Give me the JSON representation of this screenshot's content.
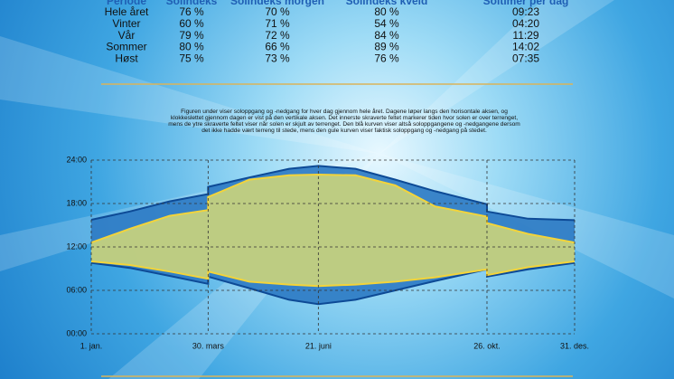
{
  "table": {
    "header": [
      "Periode",
      "Solindeks",
      "Solindeks morgen",
      "Solindeks kveld",
      "Soltimer per dag"
    ],
    "rows": [
      [
        "Hele året",
        "76 %",
        "70 %",
        "80 %",
        "09:23"
      ],
      [
        "Vinter",
        "60 %",
        "71 %",
        "54 %",
        "04:20"
      ],
      [
        "Vår",
        "79 %",
        "72 %",
        "84 %",
        "11:29"
      ],
      [
        "Sommer",
        "80 %",
        "66 %",
        "89 %",
        "14:02"
      ],
      [
        "Høst",
        "75 %",
        "73 %",
        "76 %",
        "07:35"
      ]
    ]
  },
  "description": [
    "Figuren under viser soloppgang og -nedgang for hver dag gjennom hele året. Dagene løper langs den horisontale aksen, og",
    "klokkeslettet gjennom dagen er vist på den vertikale aksen. Det innerste skraverte feltet markerer tiden hvor solen er over terrenget,",
    "mens de ytre skraverte feltet viser når solen er skjult av terrenget. Den blå kurven viser altså soloppgangene og -nedgangene dersom",
    "det ikke hadde vært terreng til stede, mens den gule kurven viser faktisk soloppgang og -nedgang på stedet."
  ],
  "chart_data": {
    "type": "band",
    "x": [
      1,
      30,
      60,
      89,
      89,
      120,
      150,
      172,
      200,
      230,
      260,
      299,
      299,
      330,
      365
    ],
    "xlim": [
      1,
      365
    ],
    "xticks": [
      {
        "value": 1,
        "label": "1. jan."
      },
      {
        "value": 89,
        "label": "30. mars"
      },
      {
        "value": 172,
        "label": "21. juni"
      },
      {
        "value": 299,
        "label": "26. okt."
      },
      {
        "value": 365,
        "label": "31. des."
      }
    ],
    "ylim": [
      0,
      24
    ],
    "yticks": [
      {
        "value": 0,
        "label": "00:00"
      },
      {
        "value": 6,
        "label": "06:00"
      },
      {
        "value": 12,
        "label": "12:00"
      },
      {
        "value": 18,
        "label": "18:00"
      },
      {
        "value": 24,
        "label": "24:00"
      }
    ],
    "grid": true,
    "bands": [
      {
        "color": "#0d4a96",
        "fill": "#2f7cc4",
        "upper": [
          15.75,
          16.9,
          18.3,
          19.3,
          20.3,
          21.6,
          22.8,
          23.2,
          22.8,
          21.3,
          19.7,
          17.9,
          16.9,
          15.9,
          15.7
        ],
        "lower": [
          9.8,
          9.1,
          8.0,
          6.9,
          7.9,
          6.3,
          4.7,
          4.1,
          4.7,
          6.0,
          7.3,
          8.9,
          7.9,
          8.9,
          9.8
        ]
      },
      {
        "color": "#f3d43a",
        "fill": "#c9d27c",
        "upper": [
          12.6,
          14.5,
          16.3,
          17.1,
          18.9,
          21.3,
          21.9,
          22.0,
          21.9,
          20.5,
          17.6,
          16.2,
          15.3,
          13.8,
          12.6
        ],
        "lower": [
          10.0,
          9.5,
          8.6,
          7.6,
          8.6,
          7.2,
          6.8,
          6.6,
          6.8,
          7.2,
          7.8,
          8.9,
          8.1,
          9.2,
          10.0
        ]
      }
    ]
  }
}
